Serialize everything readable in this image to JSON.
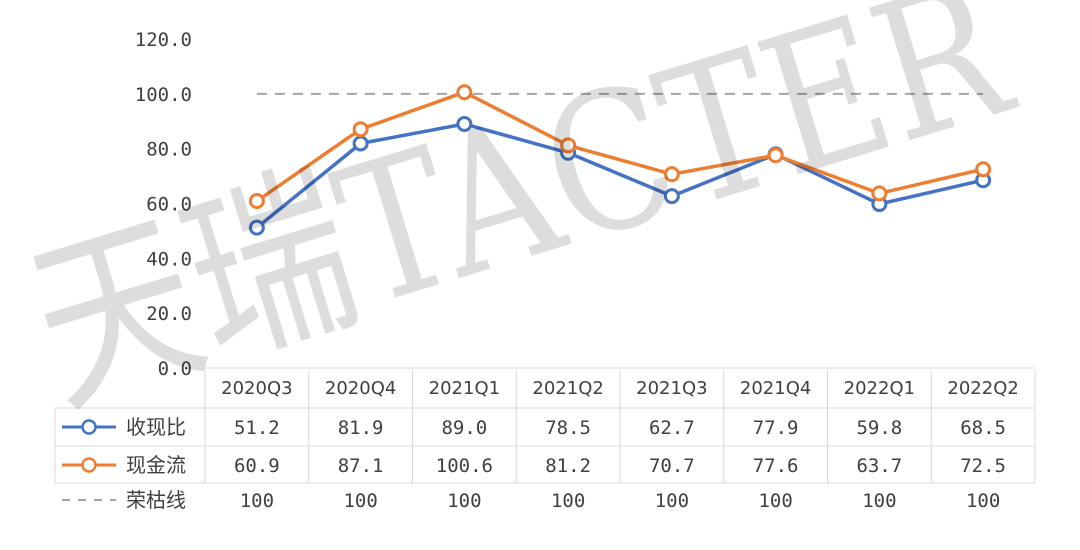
{
  "chart_data": {
    "type": "line",
    "categories": [
      "2020Q3",
      "2020Q4",
      "2021Q1",
      "2021Q2",
      "2021Q3",
      "2021Q4",
      "2022Q1",
      "2022Q2"
    ],
    "series": [
      {
        "name": "收现比",
        "values": [
          51.2,
          81.9,
          89.0,
          78.5,
          62.7,
          77.9,
          59.8,
          68.5
        ],
        "labels": [
          "51.2",
          "81.9",
          "89.0",
          "78.5",
          "62.7",
          "77.9",
          "59.8",
          "68.5"
        ],
        "color": "#4472C4",
        "style": "solid-marker"
      },
      {
        "name": "现金流",
        "values": [
          60.9,
          87.1,
          100.6,
          81.2,
          70.7,
          77.6,
          63.7,
          72.5
        ],
        "labels": [
          "60.9",
          "87.1",
          "100.6",
          "81.2",
          "70.7",
          "77.6",
          "63.7",
          "72.5"
        ],
        "color": "#ED7D31",
        "style": "solid-marker"
      },
      {
        "name": "荣枯线",
        "values": [
          100,
          100,
          100,
          100,
          100,
          100,
          100,
          100
        ],
        "labels": [
          "100",
          "100",
          "100",
          "100",
          "100",
          "100",
          "100",
          "100"
        ],
        "color": "#A5A5A5",
        "style": "dashed"
      }
    ],
    "ylim": [
      0,
      120
    ],
    "yticks": [
      "0.0",
      "20.0",
      "40.0",
      "60.0",
      "80.0",
      "100.0",
      "120.0"
    ],
    "grid": false,
    "legend": "data-table"
  },
  "watermark": "天瑞TACTER"
}
